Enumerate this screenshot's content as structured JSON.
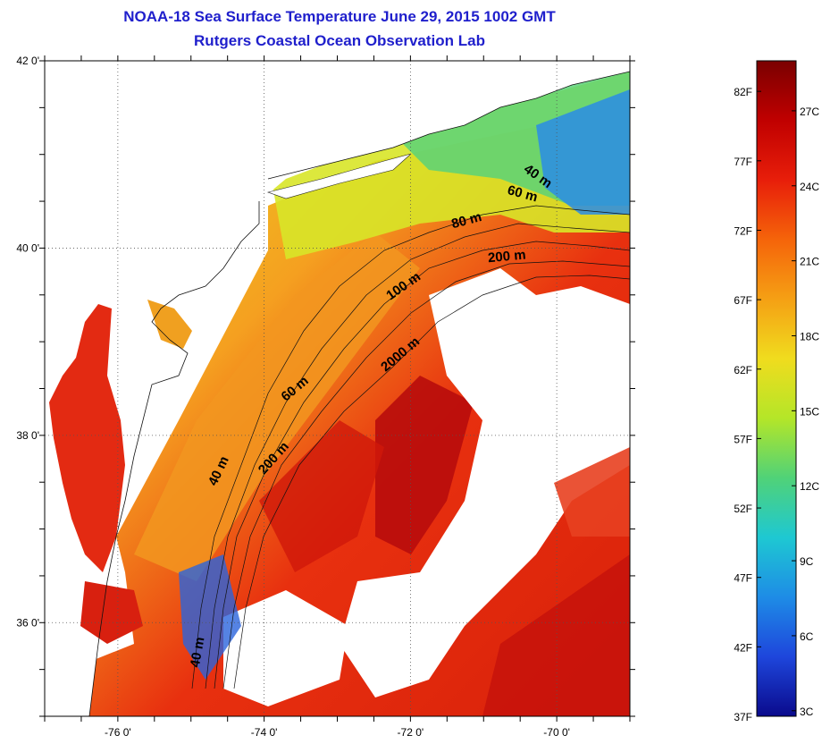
{
  "title": {
    "line1": "NOAA-18 Sea Surface Temperature June 29, 2015 1002 GMT",
    "line2": "Rutgers Coastal Ocean Observation Lab"
  },
  "map": {
    "lat_range": [
      35.0,
      42.0
    ],
    "lon_range": [
      -77.0,
      -69.0
    ],
    "lat_ticks": [
      {
        "value": 42,
        "label": "42 0'"
      },
      {
        "value": 40,
        "label": "40 0'"
      },
      {
        "value": 38,
        "label": "38 0'"
      },
      {
        "value": 36,
        "label": "36 0'"
      }
    ],
    "lon_ticks": [
      {
        "value": -76,
        "label": "-76 0'"
      },
      {
        "value": -74,
        "label": "-74 0'"
      },
      {
        "value": -72,
        "label": "-72 0'"
      },
      {
        "value": -70,
        "label": "-70 0'"
      }
    ],
    "grid": "dotted",
    "contour_labels": [
      "40 m",
      "60 m",
      "80 m",
      "200 m",
      "100 m",
      "2000 m",
      "60 m",
      "40 m",
      "200 m",
      "40 m"
    ],
    "colors": {
      "land": "#ffffff",
      "warm_water": "#e8280f",
      "hot_water": "#b80c0c",
      "mid_water": "#f2a520",
      "cool_water": "#e6e61e",
      "cold_water": "#32c8d8",
      "very_cold": "#1e3cdc"
    }
  },
  "colorbar": {
    "f_labels": [
      "82F",
      "77F",
      "72F",
      "67F",
      "62F",
      "57F",
      "52F",
      "47F",
      "42F",
      "37F"
    ],
    "c_labels": [
      "27C",
      "24C",
      "21C",
      "18C",
      "15C",
      "12C",
      "9C",
      "6C",
      "3C"
    ],
    "gradient": [
      "#7a0000",
      "#c00000",
      "#e81e0a",
      "#f5640a",
      "#f5a014",
      "#f0dc1e",
      "#b4e628",
      "#50d278",
      "#1ec8d2",
      "#1e8ce6",
      "#1e46dc",
      "#0a0a8c"
    ]
  }
}
